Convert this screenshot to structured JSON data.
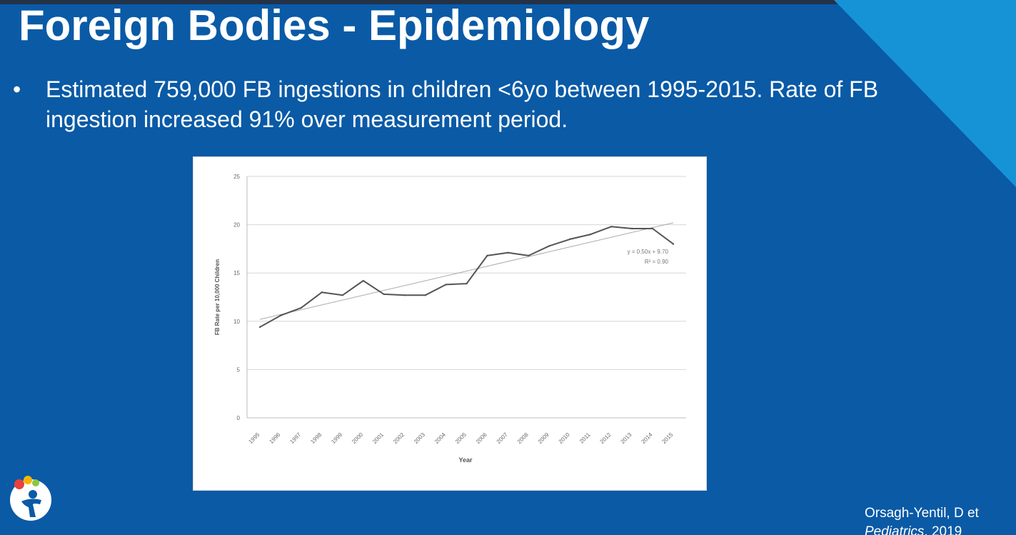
{
  "slide": {
    "title": "Foreign Bodies - Epidemiology",
    "bullet_marker": "•",
    "bullet_text": "Estimated 759,000 FB ingestions in children <6yo between 1995-2015. Rate of FB ingestion increased 91% over measurement period.",
    "citation_line1": "Orsagh-Yentil, D et",
    "citation_journal": "Pediatrics",
    "citation_year": "2019",
    "colors": {
      "background": "#0a5aa6",
      "accent": "#1693d6",
      "text": "#ffffff"
    }
  },
  "chart_data": {
    "type": "line",
    "title": "",
    "xlabel": "Year",
    "ylabel": "FB Rate per 10,000 Children",
    "x": [
      "1995",
      "1996",
      "1997",
      "1998",
      "1999",
      "2000",
      "2001",
      "2002",
      "2003",
      "2004",
      "2005",
      "2006",
      "2007",
      "2008",
      "2009",
      "2010",
      "2011",
      "2012",
      "2013",
      "2014",
      "2015"
    ],
    "ylim": [
      0,
      25
    ],
    "yticks": [
      0,
      5,
      10,
      15,
      20,
      25
    ],
    "series": [
      {
        "values": [
          9.4,
          10.6,
          11.4,
          13.0,
          12.7,
          14.2,
          12.8,
          12.7,
          12.7,
          13.8,
          13.9,
          16.8,
          17.1,
          16.8,
          17.8,
          18.5,
          19.0,
          19.8,
          19.6,
          19.6,
          18.0
        ]
      }
    ],
    "trendline": {
      "slope": 0.5,
      "intercept": 9.7,
      "r2": 0.9
    },
    "annotation": [
      "y = 0.50x + 9.70",
      "R² = 0.90"
    ],
    "grid": true,
    "line_color": "#555555",
    "trend_color": "#aaaaaa"
  }
}
